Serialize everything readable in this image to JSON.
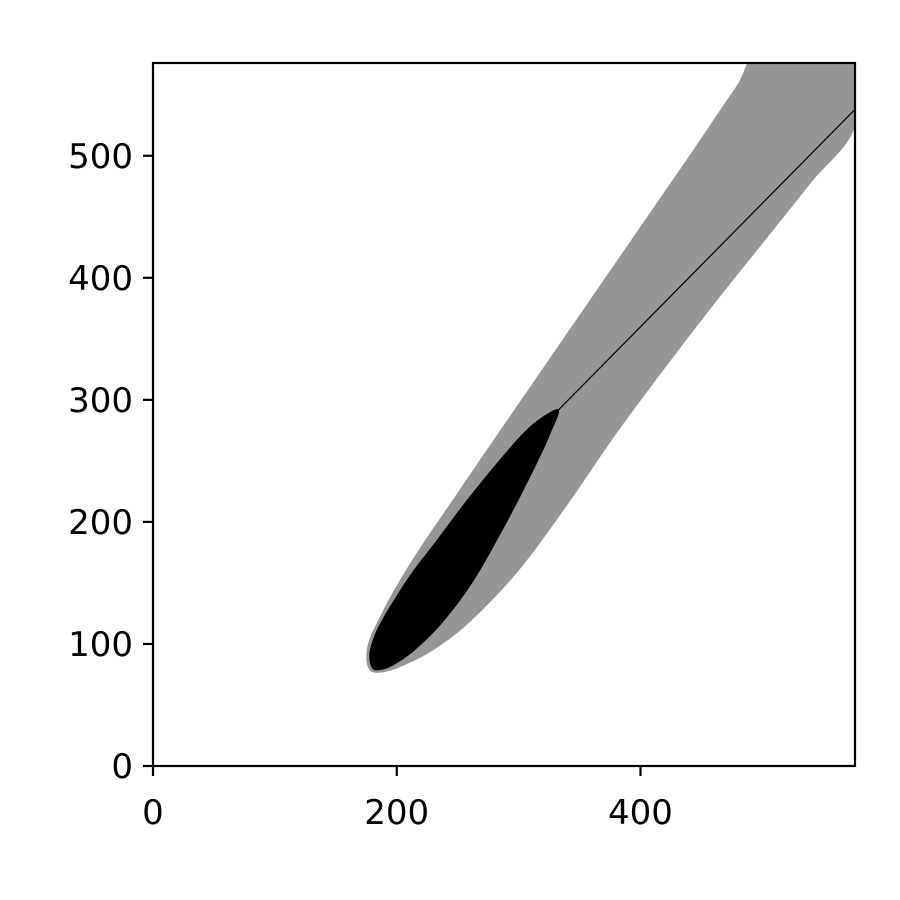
{
  "chart_data": {
    "type": "area",
    "title": "",
    "xlabel": "",
    "ylabel": "",
    "xlim": [
      0,
      576
    ],
    "ylim": [
      0,
      576
    ],
    "x_ticks": [
      0,
      200,
      400
    ],
    "y_ticks": [
      0,
      100,
      200,
      300,
      400,
      500
    ],
    "grid": false,
    "legend": "none",
    "colors": {
      "outer_region": "#969696",
      "inner_region": "#000000",
      "background": "#ffffff"
    },
    "regions": [
      {
        "color": "#969696",
        "boundary": [
          [
            180,
            77
          ],
          [
            176,
            82
          ],
          [
            175,
            90
          ],
          [
            177,
            102
          ],
          [
            184,
            118
          ],
          [
            200,
            148
          ],
          [
            220,
            180
          ],
          [
            250,
            224
          ],
          [
            280,
            268
          ],
          [
            320,
            326
          ],
          [
            360,
            384
          ],
          [
            400,
            442
          ],
          [
            440,
            500
          ],
          [
            478,
            556
          ],
          [
            502,
            590
          ],
          [
            576,
            590
          ],
          [
            576,
            524
          ],
          [
            540,
            478
          ],
          [
            500,
            428
          ],
          [
            460,
            378
          ],
          [
            420,
            326
          ],
          [
            380,
            272
          ],
          [
            340,
            214
          ],
          [
            300,
            160
          ],
          [
            260,
            118
          ],
          [
            230,
            95
          ],
          [
            205,
            82
          ],
          [
            190,
            77
          ]
        ]
      },
      {
        "color": "#000000",
        "boundary": [
          [
            181,
            79
          ],
          [
            178,
            85
          ],
          [
            178,
            95
          ],
          [
            183,
            110
          ],
          [
            194,
            130
          ],
          [
            212,
            158
          ],
          [
            232,
            184
          ],
          [
            256,
            216
          ],
          [
            282,
            248
          ],
          [
            303,
            272
          ],
          [
            318,
            285
          ],
          [
            333,
            292
          ],
          [
            326,
            272
          ],
          [
            316,
            250
          ],
          [
            302,
            222
          ],
          [
            284,
            188
          ],
          [
            262,
            150
          ],
          [
            238,
            118
          ],
          [
            215,
            95
          ],
          [
            198,
            83
          ],
          [
            188,
            79
          ]
        ]
      }
    ],
    "lines": [
      {
        "color": "#000000",
        "points": [
          [
            333,
            292
          ],
          [
            576,
            538
          ]
        ]
      }
    ]
  }
}
